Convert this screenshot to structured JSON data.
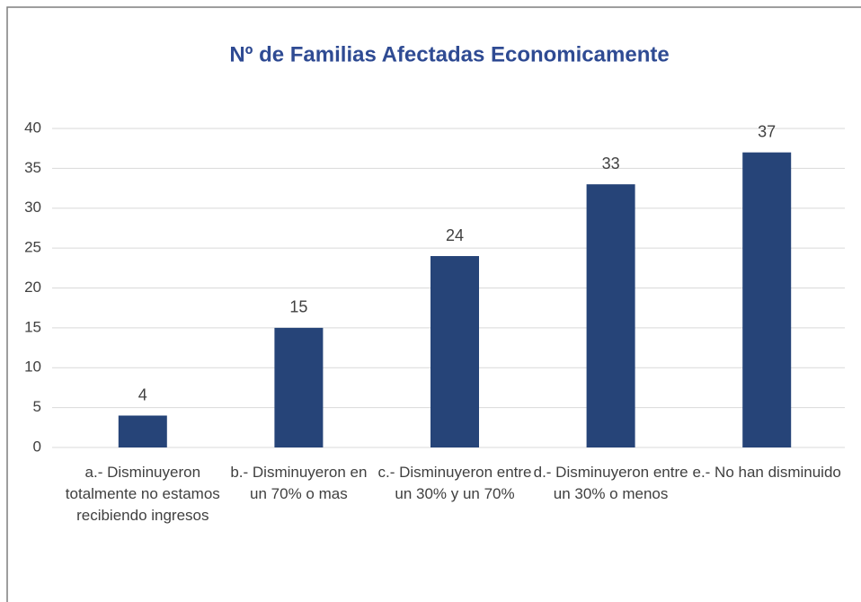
{
  "chart_data": {
    "type": "bar",
    "title": "Nº de Familias Afectadas Economicamente",
    "categories": [
      "a.- Disminuyeron totalmente no estamos recibiendo ingresos",
      "b.- Disminuyeron en un 70% o mas",
      "c.- Disminuyeron entre un 30% y un 70%",
      "d.- Disminuyeron entre un 30% o menos",
      "e.- No han disminuido"
    ],
    "values": [
      4,
      15,
      24,
      33,
      37
    ],
    "color": "#264478",
    "ylim": [
      0,
      40
    ],
    "yticks": [
      0,
      5,
      10,
      15,
      20,
      25,
      30,
      35,
      40
    ],
    "grid": true
  }
}
